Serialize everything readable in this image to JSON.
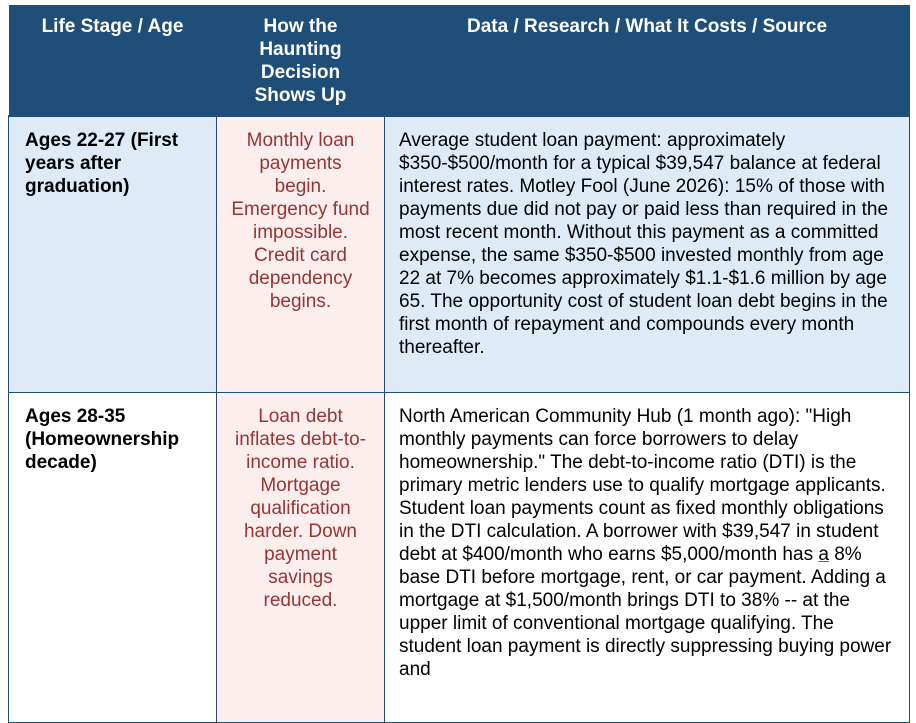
{
  "table": {
    "headers": {
      "stage": "Life Stage / Age",
      "haunting": "How the Haunting Decision Shows Up",
      "source": "Data / Research / What It Costs / Source"
    },
    "rows": [
      {
        "stage": "Ages 22-27 (First years after graduation)",
        "haunting": "Monthly loan payments begin. Emergency fund impossible. Credit card dependency begins.",
        "source": "Average student loan payment: approximately $350-$500/month for a typical $39,547 balance at federal interest rates. Motley Fool (June 2026): 15% of those with payments due did not pay or paid less than required in the most recent month. Without this payment as a committed expense, the same $350-$500 invested monthly from age 22 at 7% becomes approximately $1.1-$1.6 million by age 65. The opportunity cost of student loan debt begins in the first month of repayment and compounds every month thereafter."
      },
      {
        "stage": "Ages 28-35 (Homeownership decade)",
        "haunting": "Loan debt inflates debt-to-income ratio. Mortgage qualification harder. Down payment savings reduced.",
        "source_part1": "North American Community Hub (1 month ago): \"High monthly payments can force borrowers to delay homeownership.\" The debt-to-income ratio (DTI) is the primary metric lenders use to qualify mortgage applicants. Student loan payments count as fixed monthly obligations in the DTI calculation. A borrower with $39,547 in student debt at $400/month who earns $5,000/month has ",
        "source_underlined": "a",
        "source_part2": " 8% base DTI before mortgage, rent, or car payment. Adding a mortgage at $1,500/month brings DTI to 38% -- at the upper limit of conventional mortgage qualifying. The student loan payment is directly suppressing buying power and"
      }
    ]
  }
}
